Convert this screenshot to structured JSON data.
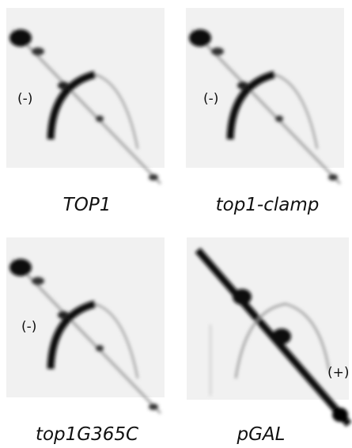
{
  "panels": [
    {
      "label": "TOP1",
      "annotation": "(-)"
    },
    {
      "label": "top1-clamp",
      "annotation": "(-)"
    },
    {
      "label": "top1G365C",
      "annotation": "(-)"
    },
    {
      "label": "pGAL",
      "annotation": "(+)"
    }
  ]
}
